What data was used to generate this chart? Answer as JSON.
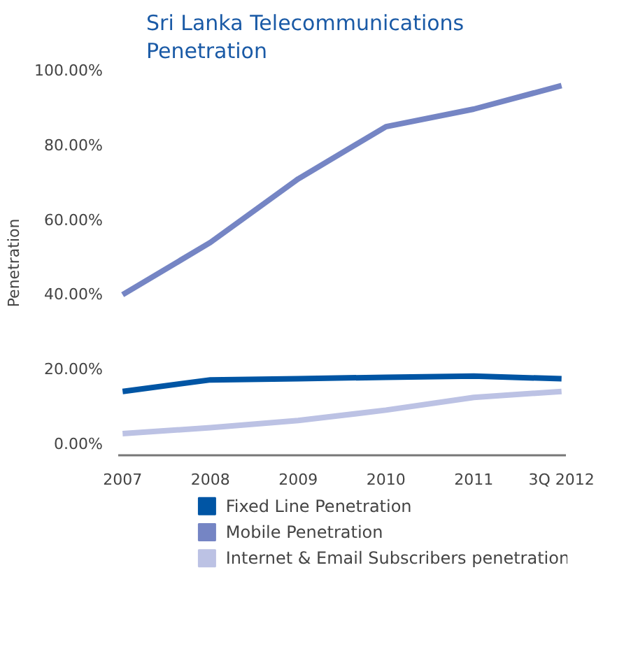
{
  "chart_data": {
    "type": "line",
    "title": "Sri Lanka Telecommunications Penetration",
    "ylabel": "Penetration",
    "categories": [
      "2007",
      "2008",
      "2009",
      "2010",
      "2011",
      "3Q 2012"
    ],
    "series": [
      {
        "name": "Fixed Line Penetration",
        "color": "#0055a4",
        "values": [
          14.1,
          17.2,
          17.5,
          17.9,
          18.2,
          17.5
        ]
      },
      {
        "name": "Mobile Penetration",
        "color": "#7585c4",
        "values": [
          40,
          54,
          71,
          85,
          89.7,
          96
        ]
      },
      {
        "name": "Internet & Email Subscribers penetration",
        "color": "#bcc2e4",
        "values": [
          2.8,
          4.4,
          6.3,
          9.1,
          12.5,
          14.1
        ]
      }
    ],
    "ylim": [
      -3,
      100
    ],
    "yticks": [
      {
        "value": 0,
        "label": "0.00%"
      },
      {
        "value": 20,
        "label": "20.00%"
      },
      {
        "value": 40,
        "label": "40.00%"
      },
      {
        "value": 60,
        "label": "60.00%"
      },
      {
        "value": 80,
        "label": "80.00%"
      },
      {
        "value": 100,
        "label": "100.00%"
      }
    ],
    "grid": false,
    "legend": "bottom",
    "marker": "none",
    "line_style": "solid"
  }
}
